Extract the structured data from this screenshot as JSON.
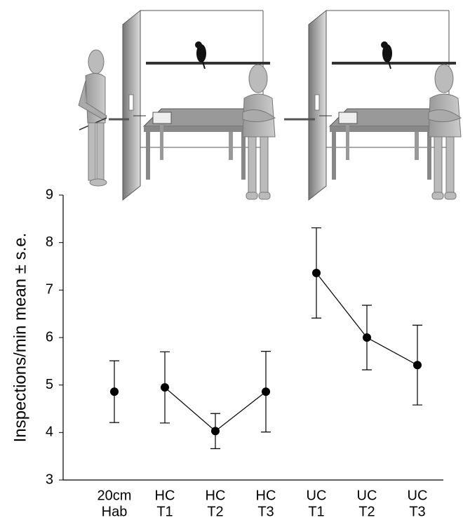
{
  "chart_data": {
    "type": "errorbar",
    "y_label": "Inspections/min mean ± s.e.",
    "categories": [
      [
        "20cm",
        "Hab"
      ],
      [
        "HC",
        "T1"
      ],
      [
        "HC",
        "T2"
      ],
      [
        "HC",
        "T3"
      ],
      [
        "UC",
        "T1"
      ],
      [
        "UC",
        "T2"
      ],
      [
        "UC",
        "T3"
      ]
    ],
    "series": [
      {
        "color": "#000000",
        "values": [
          4.86,
          null,
          null,
          null,
          null,
          null,
          null
        ],
        "errors": [
          0.65,
          null,
          null,
          null,
          null,
          null,
          null
        ]
      },
      {
        "color": "#000000",
        "values": [
          null,
          4.95,
          4.03,
          4.86,
          null,
          null,
          null
        ],
        "errors": [
          null,
          0.75,
          0.37,
          0.85,
          null,
          null,
          null
        ]
      },
      {
        "color": "#000000",
        "values": [
          null,
          null,
          null,
          null,
          7.36,
          6.0,
          5.42
        ],
        "errors": [
          null,
          null,
          null,
          null,
          0.95,
          0.68,
          0.84
        ]
      }
    ],
    "ylim": [
      3,
      9
    ],
    "yticks": [
      3,
      4,
      5,
      6,
      7,
      8,
      9
    ],
    "grid": false
  }
}
